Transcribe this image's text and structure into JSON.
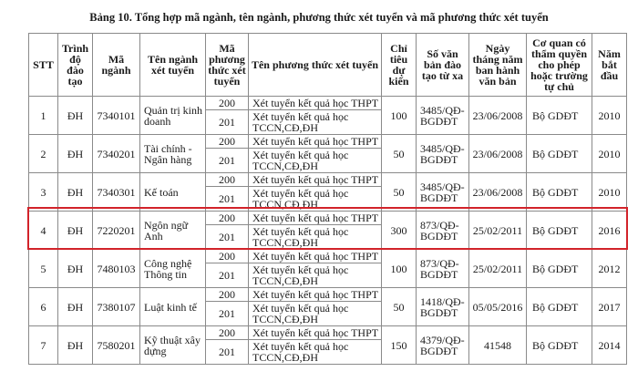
{
  "title": "Bảng 10. Tổng hợp mã ngành, tên ngành, phương thức xét tuyển và mã phương thức xét tuyển",
  "headers": [
    "STT",
    "Trình độ đào tạo",
    "Mã ngành",
    "Tên ngành xét tuyển",
    "Mã phương thức xét tuyển",
    "Tên phương thức xét tuyển",
    "Chỉ tiêu dự kiến",
    "Số văn bản đào tạo từ xa",
    "Ngày tháng năm ban hành văn bản",
    "Cơ quan có thẩm quyền cho phép hoặc trường tự chủ",
    "Năm bắt đầu"
  ],
  "highlight_color": "#d2232a",
  "highlighted_row": 4,
  "rows": [
    {
      "stt": "1",
      "level": "ĐH",
      "code": "7340101",
      "name": "Quản trị kinh doanh",
      "m1": "200",
      "n1": "Xét tuyển kết quả học THPT",
      "m2": "201",
      "n2": "Xét tuyển kết quả học TCCN,CĐ,ĐH",
      "quota": "100",
      "doc": "3485/QĐ-BGDĐT",
      "date": "23/06/2008",
      "agency": "Bộ GDĐT",
      "year": "2010"
    },
    {
      "stt": "2",
      "level": "ĐH",
      "code": "7340201",
      "name": "Tài chính - Ngân hàng",
      "m1": "200",
      "n1": "Xét tuyển kết quả học THPT",
      "m2": "201",
      "n2": "Xét tuyển kết quả học TCCN,CĐ,ĐH",
      "quota": "50",
      "doc": "3485/QĐ-BGDĐT",
      "date": "23/06/2008",
      "agency": "Bộ GDĐT",
      "year": "2010"
    },
    {
      "stt": "3",
      "level": "ĐH",
      "code": "7340301",
      "name": "Kế toán",
      "m1": "200",
      "n1": "Xét tuyển kết quả học THPT",
      "m2": "201",
      "n2": "Xét tuyển kết quả học TCCN,CĐ,ĐH",
      "quota": "50",
      "doc": "3485/QĐ-BGDĐT",
      "date": "23/06/2008",
      "agency": "Bộ GDĐT",
      "year": "2010"
    },
    {
      "stt": "4",
      "level": "ĐH",
      "code": "7220201",
      "name": "Ngôn ngữ Anh",
      "m1": "200",
      "n1": "Xét tuyển kết quả học THPT",
      "m2": "201",
      "n2": "Xét tuyển kết quả học TCCN,CĐ,ĐH",
      "quota": "300",
      "doc": "873/QĐ-BGDĐT",
      "date": "25/02/2011",
      "agency": "Bộ GDĐT",
      "year": "2016"
    },
    {
      "stt": "5",
      "level": "ĐH",
      "code": "7480103",
      "name": "Công nghệ Thông tin",
      "m1": "200",
      "n1": "Xét tuyển kết quả học THPT",
      "m2": "201",
      "n2": "Xét tuyển kết quả học TCCN,CĐ,ĐH",
      "quota": "100",
      "doc": "873/QĐ-BGDĐT",
      "date": "25/02/2011",
      "agency": "Bộ GDĐT",
      "year": "2012"
    },
    {
      "stt": "6",
      "level": "ĐH",
      "code": "7380107",
      "name": "Luật kinh tế",
      "m1": "200",
      "n1": "Xét tuyển kết quả học THPT",
      "m2": "201",
      "n2": "Xét tuyển kết quả học TCCN,CĐ,ĐH",
      "quota": "50",
      "doc": "1418/QĐ-BGDĐT",
      "date": "05/05/2016",
      "agency": "Bộ GDĐT",
      "year": "2017"
    },
    {
      "stt": "7",
      "level": "ĐH",
      "code": "7580201",
      "name": "Kỹ thuật xây dựng",
      "m1": "200",
      "n1": "Xét tuyển kết quả học THPT",
      "m2": "201",
      "n2": "Xét tuyển kết quả học TCCN,CĐ,ĐH",
      "quota": "150",
      "doc": "4379/QĐ-BGDĐT",
      "date": "41548",
      "agency": "Bộ GDĐT",
      "year": "2014"
    }
  ]
}
